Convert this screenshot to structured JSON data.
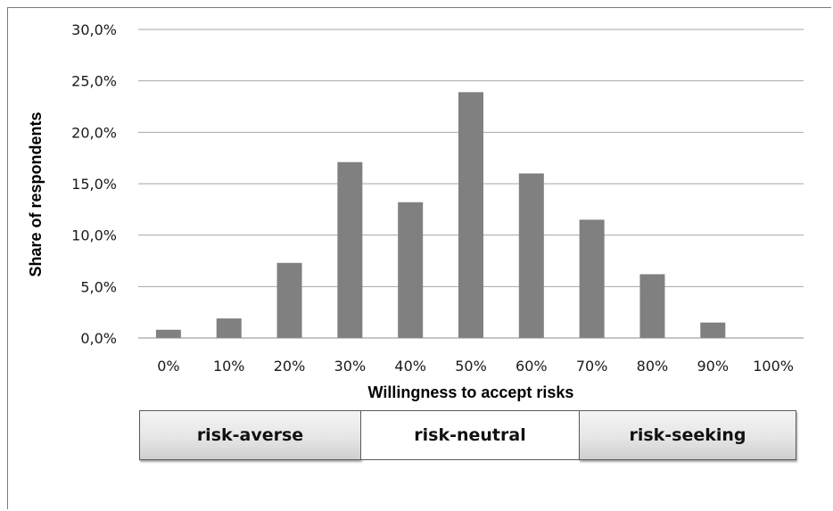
{
  "chart_data": {
    "type": "bar",
    "categories": [
      "0%",
      "10%",
      "20%",
      "30%",
      "40%",
      "50%",
      "60%",
      "70%",
      "80%",
      "90%",
      "100%"
    ],
    "values": [
      0.8,
      1.9,
      7.3,
      17.1,
      13.2,
      23.9,
      16.0,
      11.5,
      6.2,
      1.5,
      0.0
    ],
    "unit": "%",
    "xlabel": "Willingness to accept risks",
    "ylabel": "Share of respondents",
    "ylim": [
      0,
      30
    ],
    "yticks": [
      "0,0%",
      "5,0%",
      "10,0%",
      "15,0%",
      "20,0%",
      "25,0%",
      "30,0%"
    ],
    "grid": true,
    "bar_color": "#808080",
    "grid_color": "#a6a6a6"
  },
  "bands": [
    {
      "label": "risk-averse",
      "style": "shaded"
    },
    {
      "label": "risk-neutral",
      "style": "plain"
    },
    {
      "label": "risk-seeking",
      "style": "shaded"
    }
  ]
}
